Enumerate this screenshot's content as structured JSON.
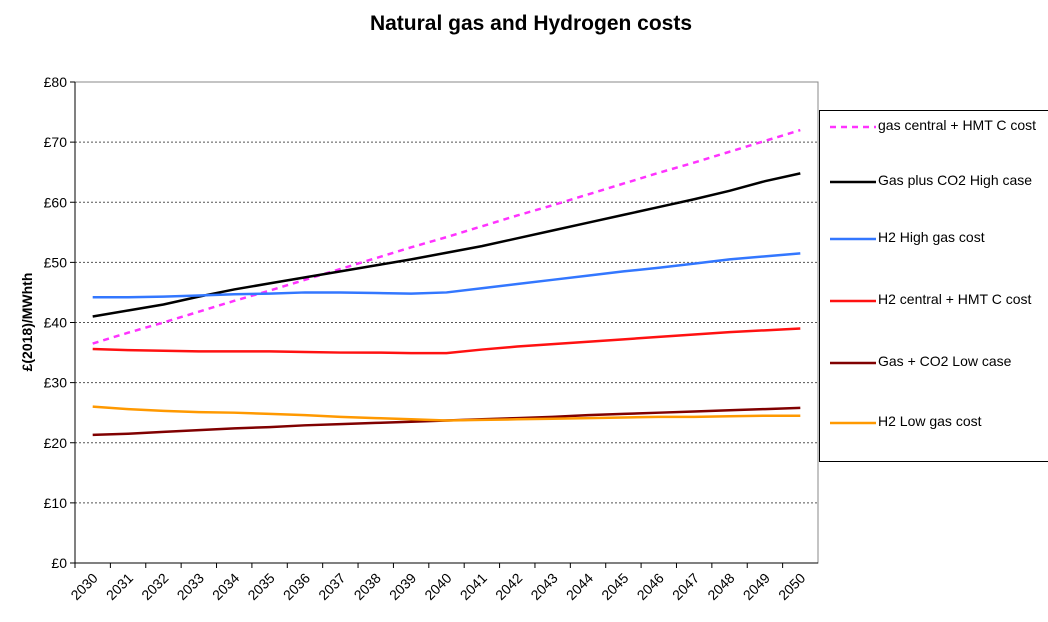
{
  "chart_data": {
    "type": "line",
    "title": "Natural gas and Hydrogen costs",
    "y_label": "£(2018)/MWhth",
    "categories": [
      "2030",
      "2031",
      "2032",
      "2033",
      "2034",
      "2035",
      "2036",
      "2037",
      "2038",
      "2039",
      "2040",
      "2041",
      "2042",
      "2043",
      "2044",
      "2045",
      "2046",
      "2047",
      "2048",
      "2049",
      "2050"
    ],
    "ylim": [
      0,
      80
    ],
    "yticks": [
      {
        "value": 0,
        "label": "£0"
      },
      {
        "value": 10,
        "label": "£10"
      },
      {
        "value": 20,
        "label": "£20"
      },
      {
        "value": 30,
        "label": "£30"
      },
      {
        "value": 40,
        "label": "£40"
      },
      {
        "value": 50,
        "label": "£50"
      },
      {
        "value": 60,
        "label": "£60"
      },
      {
        "value": 70,
        "label": "£70"
      },
      {
        "value": 80,
        "label": "£80"
      }
    ],
    "grid": true,
    "legend": "right",
    "series": [
      {
        "name": "gas central + HMT C cost",
        "color": "#ff33ff",
        "dashed": true,
        "values": [
          36.5,
          38.3,
          40,
          41.8,
          43.6,
          45.3,
          47.1,
          48.9,
          50.7,
          52.5,
          54.2,
          56,
          57.8,
          59.5,
          61.3,
          63.1,
          64.9,
          66.6,
          68.4,
          70.2,
          72
        ]
      },
      {
        "name": "Gas plus CO2 High case",
        "color": "#000000",
        "values": [
          41,
          42,
          43,
          44.3,
          45.5,
          46.5,
          47.5,
          48.5,
          49.5,
          50.5,
          51.6,
          52.7,
          54,
          55.3,
          56.6,
          57.9,
          59.2,
          60.5,
          61.9,
          63.5,
          64.8
        ]
      },
      {
        "name": "H2 High gas cost",
        "color": "#3377ff",
        "values": [
          44.2,
          44.2,
          44.3,
          44.5,
          44.7,
          44.8,
          45,
          45,
          44.9,
          44.8,
          45,
          45.7,
          46.4,
          47.1,
          47.8,
          48.5,
          49.1,
          49.8,
          50.5,
          51,
          51.5
        ]
      },
      {
        "name": "H2 central + HMT C cost",
        "color": "#ff1111",
        "values": [
          35.6,
          35.4,
          35.3,
          35.2,
          35.2,
          35.2,
          35.1,
          35,
          35,
          34.9,
          34.9,
          35.5,
          36,
          36.4,
          36.8,
          37.2,
          37.6,
          38,
          38.4,
          38.7,
          39
        ]
      },
      {
        "name": "Gas + CO2 Low case",
        "color": "#800000",
        "values": [
          21.3,
          21.5,
          21.8,
          22.1,
          22.4,
          22.6,
          22.9,
          23.1,
          23.3,
          23.5,
          23.7,
          23.9,
          24.1,
          24.3,
          24.6,
          24.8,
          25,
          25.2,
          25.4,
          25.6,
          25.8
        ]
      },
      {
        "name": "H2 Low gas cost",
        "color": "#ff9900",
        "values": [
          26,
          25.6,
          25.3,
          25.1,
          25,
          24.8,
          24.6,
          24.3,
          24.1,
          23.9,
          23.7,
          23.8,
          23.9,
          24,
          24.1,
          24.2,
          24.3,
          24.3,
          24.4,
          24.5,
          24.5
        ]
      }
    ]
  }
}
